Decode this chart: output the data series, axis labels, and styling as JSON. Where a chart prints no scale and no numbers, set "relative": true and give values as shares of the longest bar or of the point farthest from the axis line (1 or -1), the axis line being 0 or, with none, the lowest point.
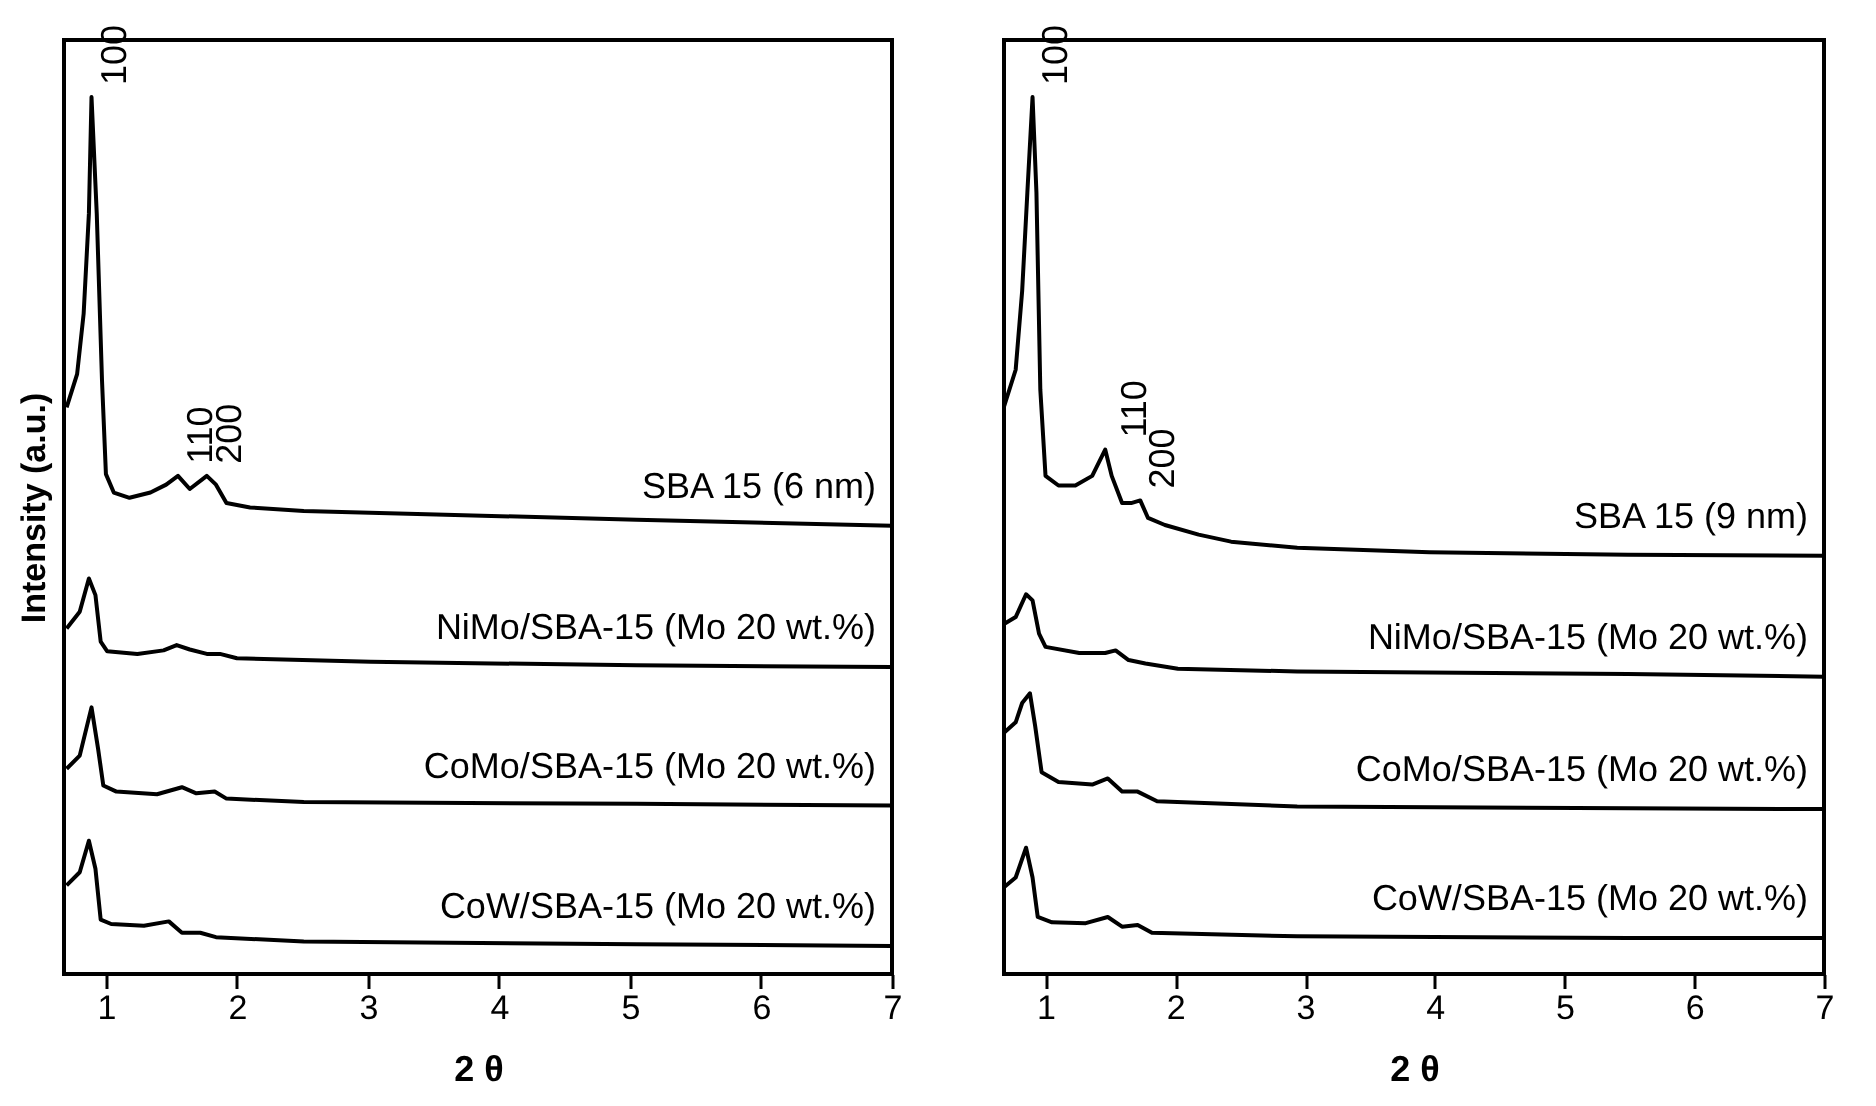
{
  "chart_data": [
    {
      "type": "line",
      "relative": true,
      "xlabel": "2 θ",
      "ylabel": "Intensity (a.u.)",
      "xlim": [
        0.68,
        7
      ],
      "xticks": [
        1,
        2,
        3,
        4,
        5,
        6,
        7
      ],
      "grid": false,
      "legend": false,
      "marker": "none",
      "line_style": "solid",
      "annotations": [
        {
          "text": "100",
          "x": 0.89,
          "y": 1.0
        },
        {
          "text": "110",
          "x": 1.55,
          "y": 0.568
        },
        {
          "text": "200",
          "x": 1.77,
          "y": 0.568
        }
      ],
      "series": [
        {
          "name": "SBA 15 (6 nm)",
          "color": "#000000",
          "x": [
            0.7,
            0.78,
            0.83,
            0.87,
            0.89,
            0.93,
            0.97,
            1.0,
            1.06,
            1.18,
            1.34,
            1.46,
            1.55,
            1.64,
            1.77,
            1.84,
            1.92,
            2.1,
            2.51,
            3.52,
            5.05,
            7.0
          ],
          "values": [
            0.646,
            0.684,
            0.753,
            0.867,
            1.0,
            0.867,
            0.677,
            0.57,
            0.549,
            0.543,
            0.549,
            0.558,
            0.568,
            0.553,
            0.568,
            0.558,
            0.537,
            0.532,
            0.528,
            0.524,
            0.518,
            0.511
          ]
        },
        {
          "name": "NiMo/SBA-15 (Mo 20 wt.%)",
          "color": "#000000",
          "x": [
            0.7,
            0.8,
            0.87,
            0.92,
            0.96,
            1.01,
            1.24,
            1.44,
            1.54,
            1.64,
            1.77,
            1.87,
            2.0,
            3.02,
            5.05,
            7.0
          ],
          "values": [
            0.394,
            0.413,
            0.451,
            0.432,
            0.379,
            0.368,
            0.365,
            0.369,
            0.375,
            0.37,
            0.365,
            0.365,
            0.36,
            0.356,
            0.352,
            0.35
          ]
        },
        {
          "name": "CoMo/SBA-15 (Mo 20 wt.%)",
          "color": "#000000",
          "x": [
            0.7,
            0.8,
            0.89,
            0.94,
            0.98,
            1.08,
            1.39,
            1.58,
            1.69,
            1.83,
            1.92,
            2.51,
            5.05,
            7.0
          ],
          "values": [
            0.234,
            0.249,
            0.304,
            0.257,
            0.215,
            0.208,
            0.205,
            0.213,
            0.206,
            0.208,
            0.2,
            0.196,
            0.194,
            0.192
          ]
        },
        {
          "name": "CoW/SBA-15 (Mo 20 wt.%)",
          "color": "#000000",
          "x": [
            0.7,
            0.8,
            0.87,
            0.92,
            0.96,
            1.04,
            1.29,
            1.48,
            1.58,
            1.72,
            1.84,
            2.51,
            5.05,
            7.0
          ],
          "values": [
            0.101,
            0.116,
            0.152,
            0.12,
            0.062,
            0.057,
            0.055,
            0.06,
            0.047,
            0.047,
            0.042,
            0.037,
            0.034,
            0.032
          ]
        }
      ]
    },
    {
      "type": "line",
      "relative": true,
      "xlabel": "2 θ",
      "xlim": [
        0.68,
        7
      ],
      "xticks": [
        1,
        2,
        3,
        4,
        5,
        6,
        7
      ],
      "grid": false,
      "legend": false,
      "marker": "none",
      "line_style": "solid",
      "annotations": [
        {
          "text": "100",
          "x": 0.9,
          "y": 1.0
        },
        {
          "text": "110",
          "x": 1.51,
          "y": 0.598
        },
        {
          "text": "200",
          "x": 1.73,
          "y": 0.54
        }
      ],
      "series": [
        {
          "name": "SBA 15 (9 nm)",
          "color": "#000000",
          "x": [
            0.68,
            0.77,
            0.82,
            0.86,
            0.9,
            0.93,
            0.96,
            1.0,
            1.1,
            1.23,
            1.36,
            1.46,
            1.51,
            1.59,
            1.66,
            1.73,
            1.79,
            1.92,
            2.18,
            2.43,
            2.94,
            3.96,
            5.49,
            7.0
          ],
          "values": [
            0.647,
            0.689,
            0.779,
            0.891,
            1.0,
            0.891,
            0.666,
            0.568,
            0.557,
            0.557,
            0.568,
            0.598,
            0.568,
            0.537,
            0.537,
            0.54,
            0.52,
            0.512,
            0.501,
            0.493,
            0.486,
            0.481,
            0.478,
            0.477
          ]
        },
        {
          "name": "NiMo/SBA-15 (Mo 20 wt.%)",
          "color": "#000000",
          "x": [
            0.68,
            0.77,
            0.85,
            0.9,
            0.95,
            1.0,
            1.26,
            1.46,
            1.54,
            1.64,
            1.77,
            2.02,
            2.94,
            5.49,
            7.0
          ],
          "values": [
            0.399,
            0.407,
            0.433,
            0.426,
            0.388,
            0.373,
            0.366,
            0.366,
            0.369,
            0.358,
            0.354,
            0.348,
            0.345,
            0.342,
            0.339
          ]
        },
        {
          "name": "CoMo/SBA-15 (Mo 20 wt.%)",
          "color": "#000000",
          "x": [
            0.68,
            0.77,
            0.82,
            0.88,
            0.92,
            0.97,
            1.1,
            1.36,
            1.48,
            1.59,
            1.71,
            1.86,
            2.94,
            5.49,
            7.0
          ],
          "values": [
            0.275,
            0.287,
            0.309,
            0.32,
            0.283,
            0.23,
            0.219,
            0.216,
            0.223,
            0.208,
            0.208,
            0.197,
            0.191,
            0.189,
            0.188
          ]
        },
        {
          "name": "CoW/SBA-15 (Mo 20 wt.%)",
          "color": "#000000",
          "x": [
            0.68,
            0.77,
            0.85,
            0.9,
            0.94,
            1.05,
            1.31,
            1.48,
            1.59,
            1.71,
            1.82,
            2.94,
            5.49,
            7.0
          ],
          "values": [
            0.099,
            0.11,
            0.144,
            0.11,
            0.065,
            0.059,
            0.058,
            0.065,
            0.054,
            0.056,
            0.047,
            0.043,
            0.041,
            0.041
          ]
        }
      ]
    }
  ]
}
